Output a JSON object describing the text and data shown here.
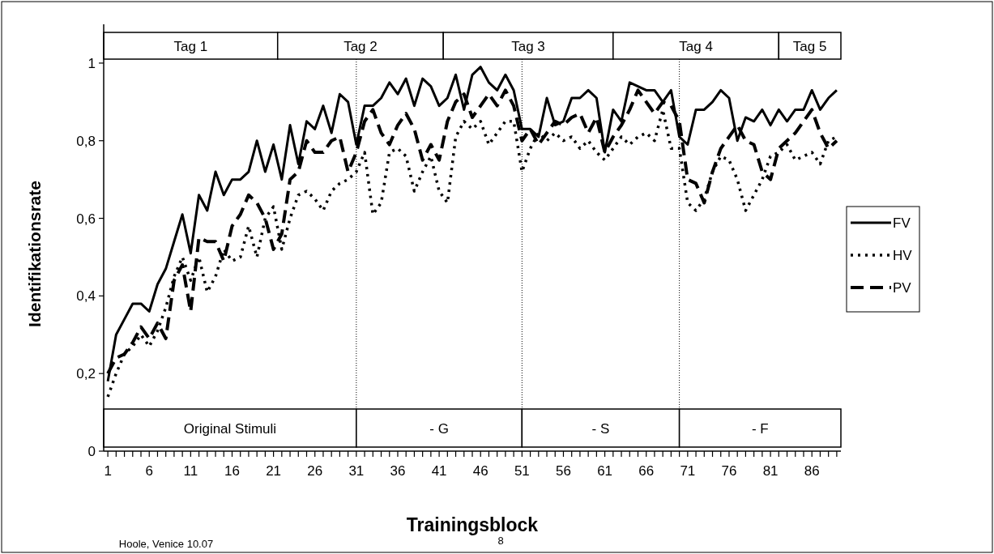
{
  "chart_data": {
    "type": "line",
    "xlabel": "Trainingsblock",
    "ylabel": "Identifikationsrate",
    "x": [
      1,
      2,
      3,
      4,
      5,
      6,
      7,
      8,
      9,
      10,
      11,
      12,
      13,
      14,
      15,
      16,
      17,
      18,
      19,
      20,
      21,
      22,
      23,
      24,
      25,
      26,
      27,
      28,
      29,
      30,
      31,
      32,
      33,
      34,
      35,
      36,
      37,
      38,
      39,
      40,
      41,
      42,
      43,
      44,
      45,
      46,
      47,
      48,
      49,
      50,
      51,
      52,
      53,
      54,
      55,
      56,
      57,
      58,
      59,
      60,
      61,
      62,
      63,
      64,
      65,
      66,
      67,
      68,
      69,
      70,
      71,
      72,
      73,
      74,
      75,
      76,
      77,
      78,
      79,
      80,
      81,
      82,
      83,
      84,
      85,
      86,
      87,
      88,
      89
    ],
    "series": [
      {
        "name": "FV",
        "color": "#000000",
        "line_style": "solid",
        "values": [
          0.18,
          0.3,
          0.34,
          0.38,
          0.38,
          0.36,
          0.43,
          0.47,
          0.54,
          0.61,
          0.51,
          0.66,
          0.62,
          0.72,
          0.66,
          0.7,
          0.7,
          0.72,
          0.8,
          0.72,
          0.79,
          0.7,
          0.84,
          0.74,
          0.85,
          0.83,
          0.89,
          0.82,
          0.92,
          0.9,
          0.79,
          0.89,
          0.89,
          0.91,
          0.95,
          0.92,
          0.96,
          0.89,
          0.96,
          0.94,
          0.89,
          0.91,
          0.97,
          0.88,
          0.97,
          0.99,
          0.95,
          0.93,
          0.97,
          0.93,
          0.83,
          0.83,
          0.81,
          0.91,
          0.84,
          0.85,
          0.91,
          0.91,
          0.93,
          0.91,
          0.77,
          0.88,
          0.85,
          0.95,
          0.94,
          0.93,
          0.93,
          0.9,
          0.93,
          0.81,
          0.79,
          0.88,
          0.88,
          0.9,
          0.93,
          0.91,
          0.8,
          0.86,
          0.85,
          0.88,
          0.84,
          0.88,
          0.85,
          0.88,
          0.88,
          0.93,
          0.88,
          0.91,
          0.93
        ]
      },
      {
        "name": "HV",
        "color": "#000000",
        "line_style": "dotted",
        "values": [
          0.14,
          0.2,
          0.25,
          0.27,
          0.3,
          0.27,
          0.31,
          0.37,
          0.45,
          0.5,
          0.44,
          0.5,
          0.41,
          0.45,
          0.52,
          0.49,
          0.5,
          0.58,
          0.5,
          0.6,
          0.63,
          0.52,
          0.6,
          0.66,
          0.67,
          0.65,
          0.62,
          0.67,
          0.69,
          0.7,
          0.72,
          0.77,
          0.61,
          0.64,
          0.77,
          0.78,
          0.76,
          0.67,
          0.72,
          0.76,
          0.67,
          0.64,
          0.81,
          0.85,
          0.83,
          0.85,
          0.79,
          0.82,
          0.85,
          0.85,
          0.72,
          0.78,
          0.82,
          0.8,
          0.82,
          0.8,
          0.81,
          0.78,
          0.8,
          0.77,
          0.75,
          0.78,
          0.81,
          0.79,
          0.81,
          0.82,
          0.8,
          0.88,
          0.78,
          0.78,
          0.64,
          0.62,
          0.65,
          0.72,
          0.76,
          0.75,
          0.7,
          0.62,
          0.66,
          0.7,
          0.76,
          0.77,
          0.79,
          0.75,
          0.76,
          0.77,
          0.74,
          0.8,
          0.81
        ]
      },
      {
        "name": "PV",
        "color": "#000000",
        "line_style": "dashed",
        "values": [
          0.2,
          0.24,
          0.25,
          0.28,
          0.32,
          0.29,
          0.33,
          0.29,
          0.44,
          0.48,
          0.36,
          0.55,
          0.54,
          0.54,
          0.49,
          0.58,
          0.61,
          0.66,
          0.64,
          0.6,
          0.52,
          0.56,
          0.7,
          0.72,
          0.8,
          0.77,
          0.77,
          0.8,
          0.81,
          0.72,
          0.77,
          0.85,
          0.88,
          0.82,
          0.79,
          0.84,
          0.87,
          0.83,
          0.75,
          0.79,
          0.75,
          0.85,
          0.9,
          0.92,
          0.86,
          0.89,
          0.92,
          0.89,
          0.93,
          0.89,
          0.8,
          0.83,
          0.79,
          0.82,
          0.85,
          0.84,
          0.86,
          0.87,
          0.82,
          0.86,
          0.77,
          0.81,
          0.84,
          0.88,
          0.93,
          0.9,
          0.87,
          0.9,
          0.89,
          0.85,
          0.7,
          0.69,
          0.64,
          0.72,
          0.78,
          0.81,
          0.84,
          0.8,
          0.79,
          0.72,
          0.7,
          0.78,
          0.8,
          0.82,
          0.85,
          0.88,
          0.82,
          0.78,
          0.8
        ]
      }
    ],
    "xlim": [
      0.5,
      89.5
    ],
    "xticks": [
      1,
      {
        "value": 2,
        "label": null
      },
      {
        "value": 3,
        "label": null
      },
      {
        "value": 4,
        "label": null
      },
      {
        "value": 5,
        "label": null
      },
      6,
      {
        "value": 7,
        "label": null
      },
      {
        "value": 8,
        "label": null
      },
      {
        "value": 9,
        "label": null
      },
      {
        "value": 10,
        "label": null
      },
      11,
      {
        "value": 12,
        "label": null
      },
      {
        "value": 13,
        "label": null
      },
      {
        "value": 14,
        "label": null
      },
      {
        "value": 15,
        "label": null
      },
      16,
      {
        "value": 17,
        "label": null
      },
      {
        "value": 18,
        "label": null
      },
      {
        "value": 19,
        "label": null
      },
      {
        "value": 20,
        "label": null
      },
      21,
      {
        "value": 22,
        "label": null
      },
      {
        "value": 23,
        "label": null
      },
      {
        "value": 24,
        "label": null
      },
      {
        "value": 25,
        "label": null
      },
      26,
      {
        "value": 27,
        "label": null
      },
      {
        "value": 28,
        "label": null
      },
      {
        "value": 29,
        "label": null
      },
      {
        "value": 30,
        "label": null
      },
      31,
      {
        "value": 32,
        "label": null
      },
      {
        "value": 33,
        "label": null
      },
      {
        "value": 34,
        "label": null
      },
      {
        "value": 35,
        "label": null
      },
      36,
      {
        "value": 37,
        "label": null
      },
      {
        "value": 38,
        "label": null
      },
      {
        "value": 39,
        "label": null
      },
      {
        "value": 40,
        "label": null
      },
      41,
      {
        "value": 42,
        "label": null
      },
      {
        "value": 43,
        "label": null
      },
      {
        "value": 44,
        "label": null
      },
      {
        "value": 45,
        "label": null
      },
      46,
      {
        "value": 47,
        "label": null
      },
      {
        "value": 48,
        "label": null
      },
      {
        "value": 49,
        "label": null
      },
      {
        "value": 50,
        "label": null
      },
      51,
      {
        "value": 52,
        "label": null
      },
      {
        "value": 53,
        "label": null
      },
      {
        "value": 54,
        "label": null
      },
      {
        "value": 55,
        "label": null
      },
      56,
      {
        "value": 57,
        "label": null
      },
      {
        "value": 58,
        "label": null
      },
      {
        "value": 59,
        "label": null
      },
      {
        "value": 60,
        "label": null
      },
      61,
      {
        "value": 62,
        "label": null
      },
      {
        "value": 63,
        "label": null
      },
      {
        "value": 64,
        "label": null
      },
      {
        "value": 65,
        "label": null
      },
      66,
      {
        "value": 67,
        "label": null
      },
      {
        "value": 68,
        "label": null
      },
      {
        "value": 69,
        "label": null
      },
      {
        "value": 70,
        "label": null
      },
      71,
      {
        "value": 72,
        "label": null
      },
      {
        "value": 73,
        "label": null
      },
      {
        "value": 74,
        "label": null
      },
      {
        "value": 75,
        "label": null
      },
      76,
      {
        "value": 77,
        "label": null
      },
      {
        "value": 78,
        "label": null
      },
      {
        "value": 79,
        "label": null
      },
      {
        "value": 80,
        "label": null
      },
      81,
      {
        "value": 82,
        "label": null
      },
      {
        "value": 83,
        "label": null
      },
      {
        "value": 84,
        "label": null
      },
      {
        "value": 85,
        "label": null
      },
      86,
      {
        "value": 87,
        "label": null
      },
      {
        "value": 88,
        "label": null
      },
      {
        "value": 89,
        "label": null
      }
    ],
    "ylim": [
      0,
      1.1
    ],
    "yticks": [
      0,
      {
        "value": 0.2,
        "label": "0,2"
      },
      {
        "value": 0.4,
        "label": "0,4"
      },
      {
        "value": 0.6,
        "label": "0,6"
      },
      {
        "value": 0.8,
        "label": "0,8"
      },
      1
    ],
    "ref_lines": [
      {
        "axis": "x",
        "value": 31,
        "line_style": "dotted"
      },
      {
        "axis": "x",
        "value": 51,
        "line_style": "dotted"
      },
      {
        "axis": "x",
        "value": 70,
        "line_style": "dotted"
      }
    ],
    "bands": [
      {
        "axis": "x",
        "from": 0.5,
        "to": 31,
        "label": "Original Stimuli"
      },
      {
        "axis": "x",
        "from": 31,
        "to": 51,
        "label": "- G"
      },
      {
        "axis": "x",
        "from": 51,
        "to": 70,
        "label": "- S"
      },
      {
        "axis": "x",
        "from": 70,
        "to": 89.5,
        "label": "- F"
      },
      {
        "axis": "x",
        "from": 0.5,
        "to": 21.5,
        "label": "Tag 1"
      },
      {
        "axis": "x",
        "from": 21.5,
        "to": 41.5,
        "label": "Tag 2"
      },
      {
        "axis": "x",
        "from": 41.5,
        "to": 62,
        "label": "Tag 3"
      },
      {
        "axis": "x",
        "from": 62,
        "to": 82,
        "label": "Tag 4"
      },
      {
        "axis": "x",
        "from": 82,
        "to": 89.5,
        "label": "Tag 5"
      }
    ],
    "legend": "right",
    "grid": false,
    "annotations": [
      "Hoole, Venice 10.07",
      "8"
    ]
  }
}
